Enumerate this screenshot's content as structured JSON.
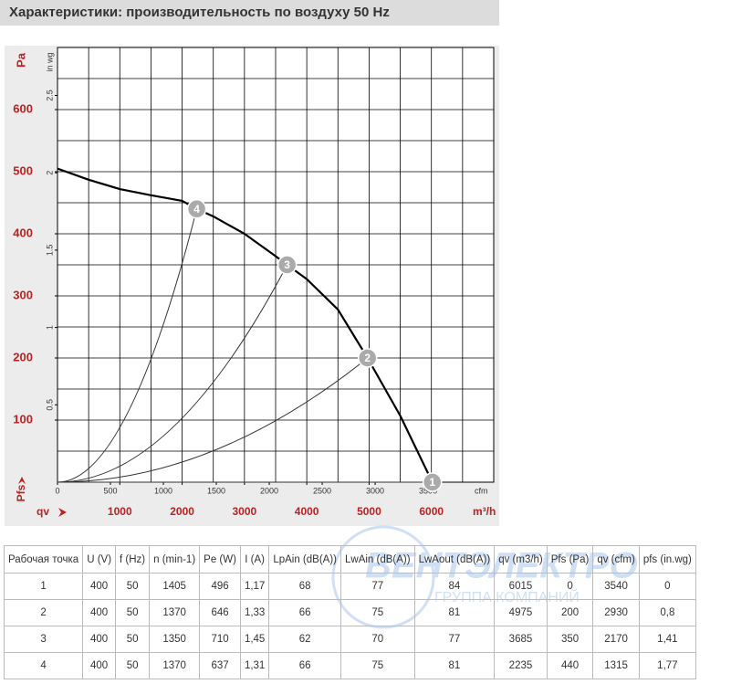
{
  "title": "Характеристики: производительность по воздуху 50 Hz",
  "chart_data": {
    "type": "line",
    "ylabel": "Pa",
    "y2label": "in wg",
    "pfs_label": "Pfs",
    "xlabel": "qv",
    "xunit": "m³/h",
    "x2unit": "cfm",
    "xlim": [
      0,
      7000
    ],
    "xticks": [
      1000,
      2000,
      3000,
      4000,
      5000,
      6000
    ],
    "x2lim": [
      0,
      4120
    ],
    "x2ticks": [
      0,
      500,
      1000,
      1500,
      2000,
      2500,
      3000,
      3500
    ],
    "ylim": [
      0,
      700
    ],
    "yticks": [
      100,
      200,
      300,
      400,
      500,
      600
    ],
    "y2lim": [
      0,
      2.81
    ],
    "y2ticks": [
      0.5,
      1,
      1.5,
      2,
      2.5
    ],
    "grid": true,
    "series": [
      {
        "color": "#000000",
        "x": [
          0,
          500,
          1000,
          1500,
          2000,
          2235,
          2500,
          3000,
          3500,
          3685,
          4000,
          4500,
          4975,
          5500,
          6015
        ],
        "y": [
          505,
          487,
          472,
          462,
          453,
          440,
          428,
          400,
          364,
          350,
          327,
          278,
          200,
          107,
          0
        ]
      }
    ],
    "operating_points": {
      "labels": [
        "1",
        "2",
        "3",
        "4"
      ],
      "x": [
        6015,
        4975,
        3685,
        2235
      ],
      "y": [
        0,
        200,
        350,
        440
      ],
      "color": "#aaaaaa"
    }
  },
  "table": {
    "header": [
      "Рабочая точка",
      "U (V)",
      "f (Hz)",
      "n (min-1)",
      "Pe (W)",
      "I (A)",
      "LpAin (dB(A))",
      "LwAin (dB(A))",
      "LwAout (dB(A))",
      "qv (m3/h)",
      "Pfs (Pa)",
      "qv (cfm)",
      "pfs (in.wg)"
    ],
    "rows": [
      [
        "1",
        "400",
        "50",
        "1405",
        "496",
        "1,17",
        "68",
        "77",
        "84",
        "6015",
        "0",
        "3540",
        "0"
      ],
      [
        "2",
        "400",
        "50",
        "1370",
        "646",
        "1,33",
        "66",
        "75",
        "81",
        "4975",
        "200",
        "2930",
        "0,8"
      ],
      [
        "3",
        "400",
        "50",
        "1350",
        "710",
        "1,45",
        "62",
        "70",
        "77",
        "3685",
        "350",
        "2170",
        "1,41"
      ],
      [
        "4",
        "400",
        "50",
        "1370",
        "637",
        "1,31",
        "66",
        "75",
        "81",
        "2235",
        "440",
        "1315",
        "1,77"
      ]
    ]
  },
  "watermark": {
    "name": "ВЕНТЭЛЕКТРО",
    "subtitle": "ГРУППА КОМПАНИЙ"
  }
}
